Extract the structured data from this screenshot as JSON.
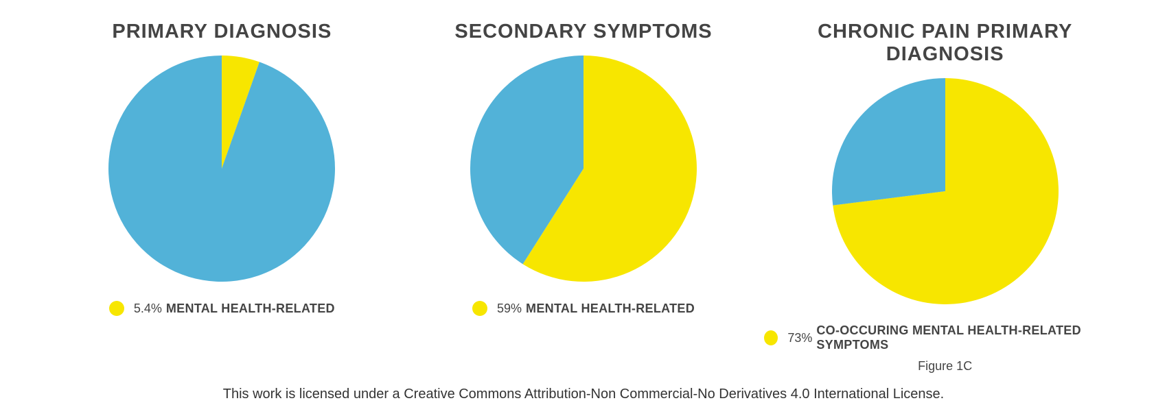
{
  "background_color": "#ffffff",
  "text_color": "#444444",
  "charts": [
    {
      "title": "PRIMARY DIAGNOSIS",
      "type": "pie",
      "diameter": 330,
      "start_angle_deg": -90,
      "slices": [
        {
          "value": 5.4,
          "color": "#f7e600"
        },
        {
          "value": 94.6,
          "color": "#52b2d8"
        }
      ],
      "legend": {
        "swatch_color": "#f7e600",
        "percent_text": "5.4%",
        "label": "MENTAL HEALTH-RELATED"
      }
    },
    {
      "title": "SECONDARY SYMPTOMS",
      "type": "pie",
      "diameter": 330,
      "start_angle_deg": -90,
      "slices": [
        {
          "value": 59,
          "color": "#f7e600"
        },
        {
          "value": 41,
          "color": "#52b2d8"
        }
      ],
      "legend": {
        "swatch_color": "#f7e600",
        "percent_text": "59%",
        "label": "MENTAL HEALTH-RELATED"
      }
    },
    {
      "title": "CHRONIC PAIN PRIMARY DIAGNOSIS",
      "type": "pie",
      "diameter": 330,
      "start_angle_deg": -90,
      "slices": [
        {
          "value": 73,
          "color": "#f7e600"
        },
        {
          "value": 27,
          "color": "#52b2d8"
        }
      ],
      "legend": {
        "swatch_color": "#f7e600",
        "percent_text": "73%",
        "label": "CO-OCCURING MENTAL HEALTH-RELATED SYMPTOMS"
      },
      "figure_label": "Figure 1C"
    }
  ],
  "license_text": "This work is licensed under a Creative Commons Attribution-Non Commercial-No Derivatives 4.0 International License."
}
